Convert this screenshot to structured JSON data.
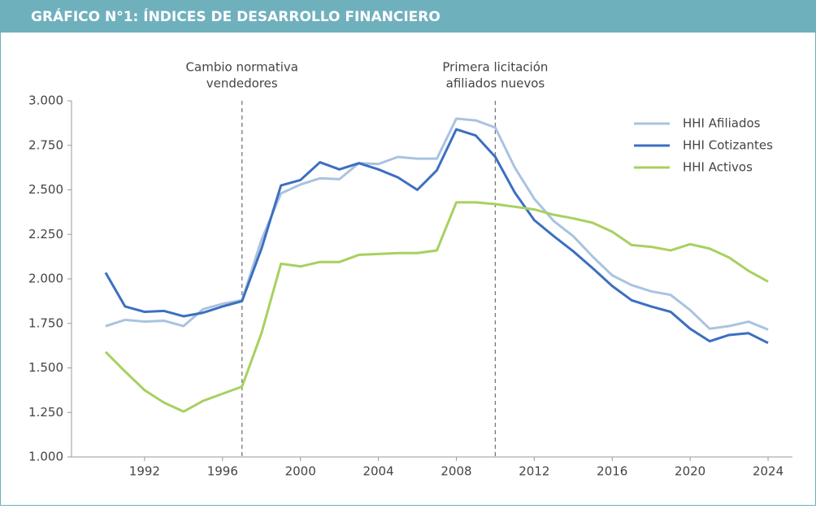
{
  "chart_data": {
    "type": "line",
    "title": "GRÁFICO N°1: ÍNDICES DE DESARROLLO FINANCIERO",
    "x": [
      1990,
      1991,
      1992,
      1993,
      1994,
      1995,
      1996,
      1997,
      1998,
      1999,
      2000,
      2001,
      2002,
      2003,
      2004,
      2005,
      2006,
      2007,
      2008,
      2009,
      2010,
      2011,
      2012,
      2013,
      2014,
      2015,
      2016,
      2017,
      2018,
      2019,
      2020,
      2021,
      2022,
      2023,
      2024
    ],
    "series": [
      {
        "name": "HHI Afiliados",
        "color": "#a9c3e0",
        "values": [
          1735,
          1770,
          1760,
          1765,
          1735,
          1830,
          1860,
          1880,
          2220,
          2480,
          2530,
          2565,
          2560,
          2650,
          2645,
          2685,
          2675,
          2675,
          2900,
          2890,
          2850,
          2625,
          2450,
          2325,
          2240,
          2125,
          2020,
          1965,
          1930,
          1910,
          1825,
          1720,
          1735,
          1760,
          1715
        ]
      },
      {
        "name": "HHI Cotizantes",
        "color": "#3c6fc0",
        "values": [
          2035,
          1845,
          1815,
          1820,
          1790,
          1810,
          1845,
          1875,
          2170,
          2525,
          2555,
          2655,
          2615,
          2650,
          2615,
          2570,
          2500,
          2610,
          2840,
          2805,
          2685,
          2485,
          2330,
          2240,
          2155,
          2060,
          1960,
          1880,
          1845,
          1815,
          1720,
          1650,
          1685,
          1695,
          1640
        ]
      },
      {
        "name": "HHI Activos",
        "color": "#a8d060",
        "values": [
          1590,
          1480,
          1375,
          1305,
          1255,
          1315,
          1355,
          1395,
          1695,
          2085,
          2070,
          2095,
          2095,
          2135,
          2140,
          2145,
          2145,
          2160,
          2430,
          2430,
          2420,
          2405,
          2390,
          2360,
          2340,
          2315,
          2265,
          2190,
          2180,
          2160,
          2195,
          2170,
          2120,
          2045,
          1985
        ]
      }
    ],
    "xlim": [
      1988.25,
      2025.25
    ],
    "xticks": [
      1992,
      1996,
      2000,
      2004,
      2008,
      2012,
      2016,
      2020,
      2024
    ],
    "ylim": [
      1000,
      3000
    ],
    "yticks": [
      {
        "value": 1000,
        "label": "1.000"
      },
      {
        "value": 1250,
        "label": "1.250"
      },
      {
        "value": 1500,
        "label": "1.500"
      },
      {
        "value": 1750,
        "label": "1.750"
      },
      {
        "value": 2000,
        "label": "2.000"
      },
      {
        "value": 2250,
        "label": "2.250"
      },
      {
        "value": 2500,
        "label": "2.500"
      },
      {
        "value": 2750,
        "label": "2.750"
      },
      {
        "value": 3000,
        "label": "3.000"
      }
    ],
    "annotations": [
      {
        "x": 1997,
        "lines": [
          "Cambio normativa",
          "vendedores"
        ]
      },
      {
        "x": 2010,
        "lines": [
          "Primera licitación",
          "afiliados nuevos"
        ]
      }
    ],
    "legend": "upper right"
  }
}
